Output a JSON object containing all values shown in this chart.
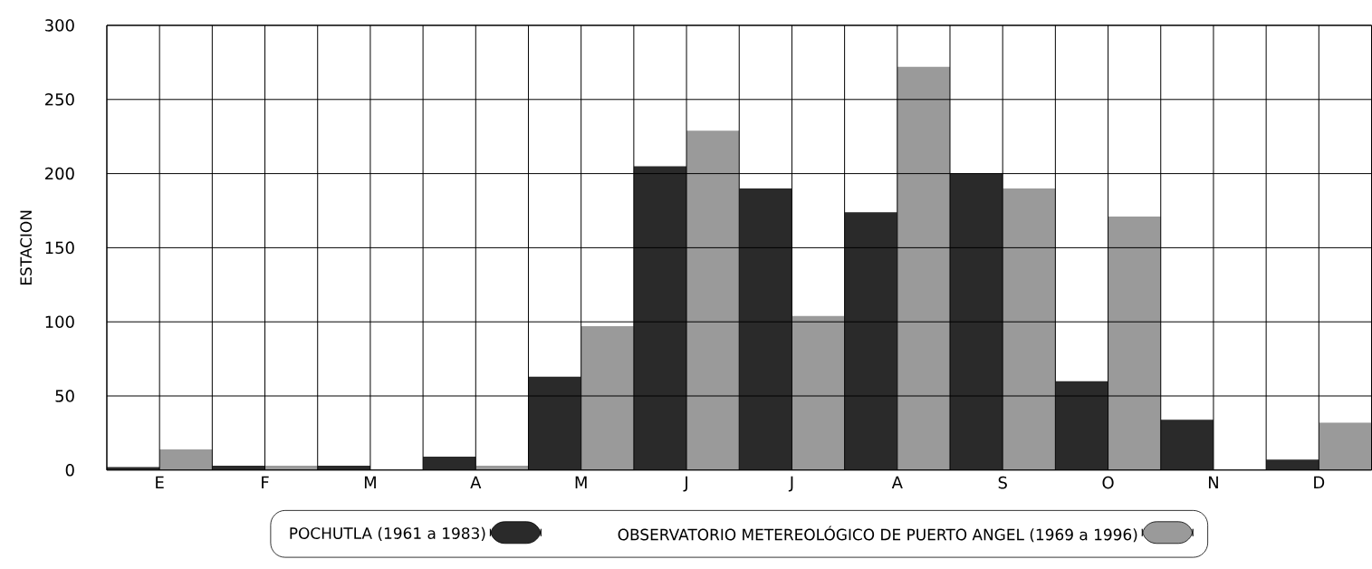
{
  "chart_data": {
    "type": "bar",
    "ylabel": "ESTACION",
    "categories": [
      "E",
      "F",
      "M",
      "A",
      "M",
      "J",
      "J",
      "A",
      "S",
      "O",
      "N",
      "D"
    ],
    "series": [
      {
        "name": "POCHUTLA (1961 a 1983)",
        "color": "#2a2a2a",
        "values": [
          2,
          3,
          3,
          9,
          63,
          205,
          190,
          174,
          200,
          60,
          34,
          7
        ]
      },
      {
        "name": "OBSERVATORIO METEREOLÓGICO DE PUERTO ANGEL (1969 a 1996)",
        "color": "#9a9a9a",
        "values": [
          14,
          3,
          0,
          3,
          97,
          229,
          104,
          272,
          190,
          171,
          0,
          32
        ]
      }
    ],
    "ylim": [
      0,
      300
    ],
    "yticks": [
      0,
      50,
      100,
      150,
      200,
      250,
      300
    ],
    "grid": true,
    "legend": "bottom"
  }
}
